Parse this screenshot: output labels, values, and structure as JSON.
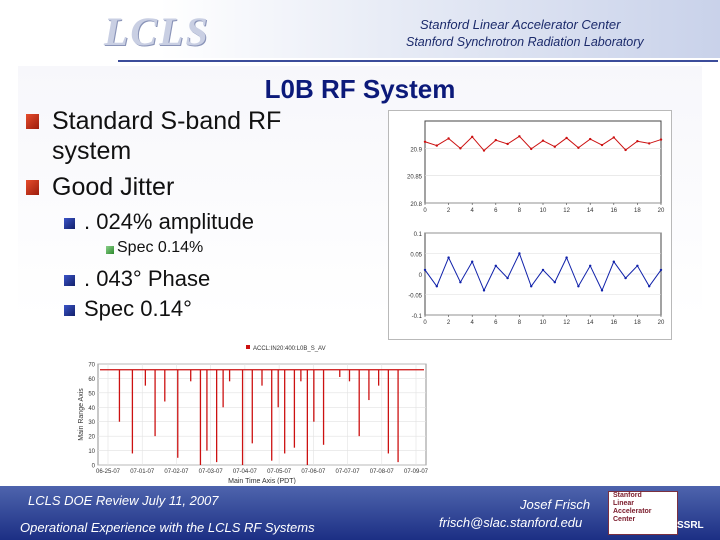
{
  "header": {
    "logo_text": "LCLS",
    "lab_line1": "Stanford Linear Accelerator Center",
    "lab_line2": "Stanford Synchrotron Radiation Laboratory"
  },
  "slide": {
    "title": "L0B RF System",
    "bullets": [
      "Standard S-band RF system",
      "Good Jitter"
    ],
    "sub_bullets": [
      ". 024% amplitude",
      ". 043° Phase",
      "Spec 0.14°"
    ],
    "sub_sub_bullet": "Spec 0.14%"
  },
  "footer": {
    "left_line1": "LCLS DOE Review  July 11, 2007",
    "left_line2": "Operational Experience with the LCLS RF Systems",
    "right_line1": "Josef Frisch",
    "right_line2": "frisch@slac.stanford.edu",
    "logo_lines": [
      "Stanford",
      "Linear",
      "Accelerator",
      "Center"
    ],
    "ssrl": "SSRL"
  },
  "colors": {
    "title": "#0c1a7a",
    "footer": "#1c2f84",
    "amplitude_series": "#cc1111",
    "phase_series": "#1122aa",
    "history_series": "#cc1111"
  },
  "chart_data": [
    {
      "type": "line",
      "title": "",
      "ylabel": "",
      "xlabel": "",
      "x_ticks": [
        "0",
        "2",
        "4",
        "6",
        "8",
        "10",
        "12",
        "14",
        "16",
        "18",
        "20"
      ],
      "y_ticks": [
        "20.8",
        "20.85",
        "20.9"
      ],
      "ylim": [
        20.8,
        20.95
      ],
      "series": [
        {
          "values": [
            20.912,
            20.905,
            20.918,
            20.9,
            20.921,
            20.896,
            20.915,
            20.908,
            20.922,
            20.899,
            20.914,
            20.903,
            20.919,
            20.901,
            20.917,
            20.906,
            20.92,
            20.897,
            20.913,
            20.909,
            20.916
          ]
        }
      ]
    },
    {
      "type": "line",
      "title": "",
      "ylabel": "",
      "xlabel": "",
      "x_ticks": [
        "0",
        "2",
        "4",
        "6",
        "8",
        "10",
        "12",
        "14",
        "16",
        "18",
        "20"
      ],
      "y_ticks": [
        "0.1",
        "0.05",
        "0",
        "-0.05",
        "-0.1"
      ],
      "ylim": [
        -0.1,
        0.1
      ],
      "series": [
        {
          "values": [
            0.01,
            -0.03,
            0.04,
            -0.02,
            0.03,
            -0.04,
            0.02,
            -0.01,
            0.05,
            -0.03,
            0.01,
            -0.02,
            0.04,
            -0.03,
            0.02,
            -0.04,
            0.03,
            -0.01,
            0.02,
            -0.03,
            0.01
          ]
        }
      ]
    },
    {
      "type": "bar",
      "title": "",
      "legend": "ACCL:IN20:400:L0B_S_AV",
      "ylabel": "Main Range Axis",
      "xlabel": "Main Time Axis (PDT)",
      "ylim": [
        0,
        70
      ],
      "y_ticks": [
        "70",
        "60",
        "50",
        "40",
        "30",
        "20",
        "10",
        "0"
      ],
      "x_ticks": [
        "06-25-07",
        "07-01-07",
        "07-02-07",
        "07-03-07",
        "07-04-07",
        "07-05-07",
        "07-06-07",
        "07-07-07",
        "07-08-07",
        "07-09-07"
      ],
      "baseline": 66,
      "dropouts": [
        {
          "t": 0.06,
          "v": 30
        },
        {
          "t": 0.1,
          "v": 8
        },
        {
          "t": 0.14,
          "v": 55
        },
        {
          "t": 0.17,
          "v": 20
        },
        {
          "t": 0.2,
          "v": 44
        },
        {
          "t": 0.24,
          "v": 5
        },
        {
          "t": 0.28,
          "v": 58
        },
        {
          "t": 0.31,
          "v": 0
        },
        {
          "t": 0.33,
          "v": 10
        },
        {
          "t": 0.36,
          "v": 2
        },
        {
          "t": 0.38,
          "v": 40
        },
        {
          "t": 0.4,
          "v": 58
        },
        {
          "t": 0.44,
          "v": 0
        },
        {
          "t": 0.47,
          "v": 15
        },
        {
          "t": 0.5,
          "v": 55
        },
        {
          "t": 0.53,
          "v": 3
        },
        {
          "t": 0.55,
          "v": 40
        },
        {
          "t": 0.57,
          "v": 8
        },
        {
          "t": 0.6,
          "v": 12
        },
        {
          "t": 0.62,
          "v": 58
        },
        {
          "t": 0.64,
          "v": 0
        },
        {
          "t": 0.66,
          "v": 30
        },
        {
          "t": 0.69,
          "v": 14
        },
        {
          "t": 0.74,
          "v": 61
        },
        {
          "t": 0.77,
          "v": 58
        },
        {
          "t": 0.8,
          "v": 20
        },
        {
          "t": 0.83,
          "v": 45
        },
        {
          "t": 0.86,
          "v": 55
        },
        {
          "t": 0.89,
          "v": 8
        },
        {
          "t": 0.92,
          "v": 2
        }
      ]
    }
  ]
}
